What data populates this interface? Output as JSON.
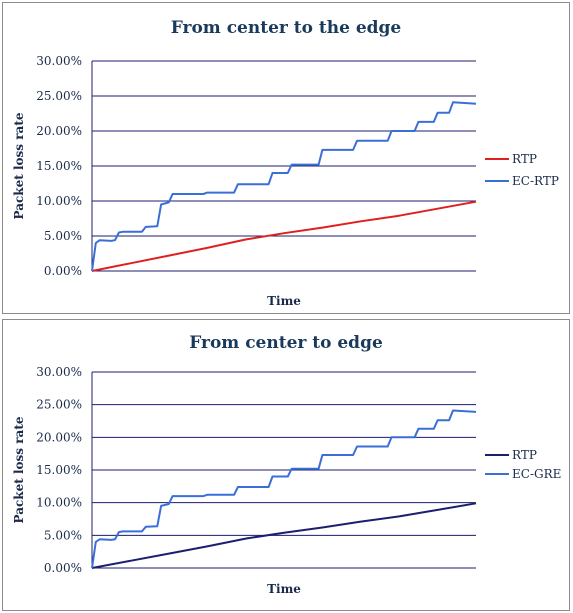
{
  "chart_data": [
    {
      "type": "line",
      "title": "From center to the edge",
      "xlabel": "Time",
      "ylabel": "Packet loss rate",
      "ylim": [
        0,
        0.3
      ],
      "yticks": [
        "30.00%",
        "25.00%",
        "20.00%",
        "15.00%",
        "10.00%",
        "5.00%",
        "0.00%"
      ],
      "grid": true,
      "legend_position": "right",
      "series": [
        {
          "name": "RTP",
          "color": "#e02020",
          "x": [
            0,
            0.1,
            0.2,
            0.3,
            0.4,
            0.5,
            0.6,
            0.7,
            0.8,
            0.9,
            1.0
          ],
          "y": [
            0.0,
            0.011,
            0.022,
            0.033,
            0.045,
            0.054,
            0.062,
            0.071,
            0.079,
            0.089,
            0.099
          ]
        },
        {
          "name": "EC-RTP",
          "color": "#3a6fd8",
          "x": [
            0,
            0.01,
            0.02,
            0.05,
            0.06,
            0.07,
            0.08,
            0.13,
            0.14,
            0.17,
            0.18,
            0.2,
            0.21,
            0.29,
            0.3,
            0.37,
            0.38,
            0.46,
            0.47,
            0.51,
            0.52,
            0.59,
            0.6,
            0.68,
            0.69,
            0.77,
            0.78,
            0.84,
            0.85,
            0.89,
            0.9,
            0.93,
            0.94,
            1.0
          ],
          "y": [
            0.0,
            0.04,
            0.044,
            0.043,
            0.044,
            0.055,
            0.056,
            0.056,
            0.063,
            0.064,
            0.095,
            0.098,
            0.11,
            0.11,
            0.112,
            0.112,
            0.124,
            0.124,
            0.14,
            0.14,
            0.152,
            0.152,
            0.173,
            0.173,
            0.186,
            0.186,
            0.2,
            0.2,
            0.213,
            0.213,
            0.226,
            0.226,
            0.241,
            0.239
          ]
        }
      ]
    },
    {
      "type": "line",
      "title": "From center to edge",
      "xlabel": "Time",
      "ylabel": "Packet loss rate",
      "ylim": [
        0,
        0.3
      ],
      "yticks": [
        "30.00%",
        "25.00%",
        "20.00%",
        "15.00%",
        "10.00%",
        "5.00%",
        "0.00%"
      ],
      "grid": true,
      "legend_position": "right",
      "series": [
        {
          "name": "RTP",
          "color": "#1a1f6e",
          "x": [
            0,
            0.1,
            0.2,
            0.3,
            0.4,
            0.5,
            0.6,
            0.7,
            0.8,
            0.9,
            1.0
          ],
          "y": [
            0.0,
            0.011,
            0.022,
            0.033,
            0.045,
            0.054,
            0.062,
            0.071,
            0.079,
            0.089,
            0.099
          ]
        },
        {
          "name": "EC-GRE",
          "color": "#3a6fd8",
          "x": [
            0,
            0.01,
            0.02,
            0.05,
            0.06,
            0.07,
            0.08,
            0.13,
            0.14,
            0.17,
            0.18,
            0.2,
            0.21,
            0.29,
            0.3,
            0.37,
            0.38,
            0.46,
            0.47,
            0.51,
            0.52,
            0.59,
            0.6,
            0.68,
            0.69,
            0.77,
            0.78,
            0.84,
            0.85,
            0.89,
            0.9,
            0.93,
            0.94,
            1.0
          ],
          "y": [
            0.0,
            0.04,
            0.044,
            0.043,
            0.044,
            0.055,
            0.056,
            0.056,
            0.063,
            0.064,
            0.095,
            0.098,
            0.11,
            0.11,
            0.112,
            0.112,
            0.124,
            0.124,
            0.14,
            0.14,
            0.152,
            0.152,
            0.173,
            0.173,
            0.186,
            0.186,
            0.2,
            0.2,
            0.213,
            0.213,
            0.226,
            0.226,
            0.241,
            0.239
          ]
        }
      ]
    }
  ]
}
